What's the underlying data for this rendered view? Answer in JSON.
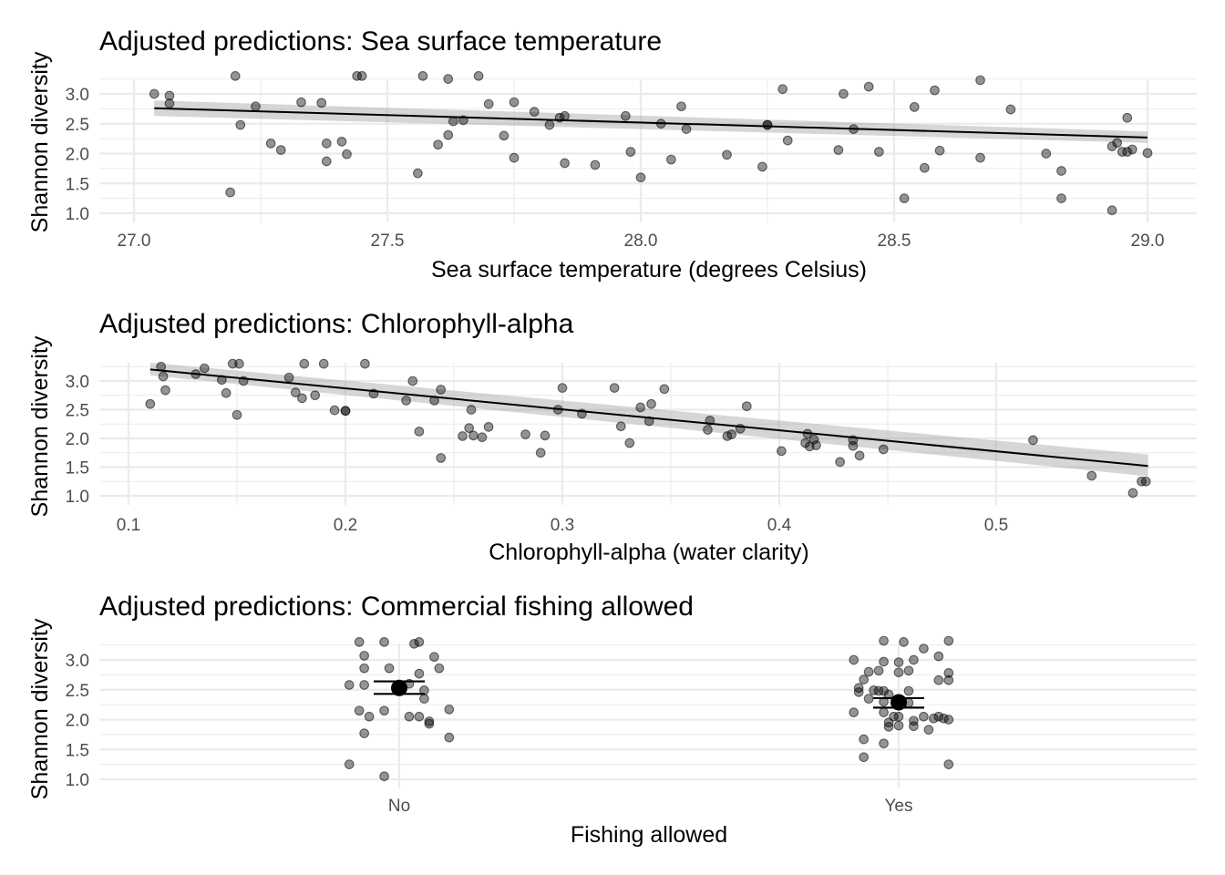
{
  "chart_data": [
    {
      "type": "scatter",
      "title": "Adjusted predictions: Sea surface temperature",
      "xlabel": "Sea surface temperature (degrees Celsius)",
      "ylabel": "Shannon diversity",
      "xlim": [
        26.93,
        29.1
      ],
      "ylim": [
        0.85,
        3.38
      ],
      "xticks": [
        27.0,
        27.5,
        28.0,
        28.5,
        29.0
      ],
      "xtick_labels": [
        "27.0",
        "27.5",
        "28.0",
        "28.5",
        "29.0"
      ],
      "yticks": [
        1.0,
        1.5,
        2.0,
        2.5,
        3.0
      ],
      "ytick_labels": [
        "1.0",
        "1.5",
        "2.0",
        "2.5",
        "3.0"
      ],
      "grid": true,
      "fit": {
        "x": [
          27.04,
          29.0
        ],
        "y": [
          2.76,
          2.27
        ],
        "ci_lower": [
          2.63,
          2.18
        ],
        "ci_upper": [
          2.89,
          2.37
        ]
      },
      "points": [
        [
          27.04,
          3.0
        ],
        [
          27.07,
          2.97
        ],
        [
          27.07,
          2.84
        ],
        [
          27.19,
          1.35
        ],
        [
          27.2,
          3.3
        ],
        [
          27.21,
          2.48
        ],
        [
          27.24,
          2.79
        ],
        [
          27.27,
          2.17
        ],
        [
          27.29,
          2.06
        ],
        [
          27.33,
          2.86
        ],
        [
          27.37,
          2.85
        ],
        [
          27.38,
          2.17
        ],
        [
          27.38,
          1.87
        ],
        [
          27.41,
          2.2
        ],
        [
          27.42,
          1.99
        ],
        [
          27.44,
          3.3
        ],
        [
          27.45,
          3.3
        ],
        [
          27.56,
          1.67
        ],
        [
          27.57,
          3.3
        ],
        [
          27.6,
          2.15
        ],
        [
          27.62,
          3.25
        ],
        [
          27.62,
          2.31
        ],
        [
          27.63,
          2.54
        ],
        [
          27.65,
          2.56
        ],
        [
          27.68,
          3.3
        ],
        [
          27.7,
          2.83
        ],
        [
          27.73,
          2.3
        ],
        [
          27.75,
          1.93
        ],
        [
          27.75,
          2.86
        ],
        [
          27.79,
          2.7
        ],
        [
          27.82,
          2.48
        ],
        [
          27.84,
          2.6
        ],
        [
          27.85,
          2.63
        ],
        [
          27.85,
          1.84
        ],
        [
          27.91,
          1.81
        ],
        [
          27.97,
          2.63
        ],
        [
          27.98,
          2.03
        ],
        [
          28.0,
          1.6
        ],
        [
          28.04,
          2.5
        ],
        [
          28.06,
          1.9
        ],
        [
          28.08,
          2.79
        ],
        [
          28.09,
          2.41
        ],
        [
          28.17,
          1.98
        ],
        [
          28.24,
          1.78
        ],
        [
          28.25,
          2.48
        ],
        [
          28.25,
          2.48
        ],
        [
          28.28,
          3.08
        ],
        [
          28.29,
          2.22
        ],
        [
          28.39,
          2.06
        ],
        [
          28.4,
          3.0
        ],
        [
          28.42,
          2.41
        ],
        [
          28.45,
          3.12
        ],
        [
          28.47,
          2.03
        ],
        [
          28.52,
          1.25
        ],
        [
          28.54,
          2.78
        ],
        [
          28.56,
          1.76
        ],
        [
          28.58,
          3.06
        ],
        [
          28.59,
          2.05
        ],
        [
          28.67,
          3.23
        ],
        [
          28.67,
          1.93
        ],
        [
          28.73,
          2.74
        ],
        [
          28.8,
          2.0
        ],
        [
          28.83,
          1.71
        ],
        [
          28.83,
          1.25
        ],
        [
          28.93,
          2.12
        ],
        [
          28.93,
          1.05
        ],
        [
          28.94,
          2.18
        ],
        [
          28.95,
          2.03
        ],
        [
          28.96,
          2.03
        ],
        [
          28.96,
          2.6
        ],
        [
          28.97,
          2.07
        ],
        [
          29.0,
          2.01
        ]
      ]
    },
    {
      "type": "scatter",
      "title": "Adjusted predictions: Chlorophyll-alpha",
      "xlabel": "Chlorophyll-alpha (water clarity)",
      "ylabel": "Shannon diversity",
      "xlim": [
        0.09,
        0.59
      ],
      "ylim": [
        0.85,
        3.4
      ],
      "xticks": [
        0.1,
        0.2,
        0.3,
        0.4,
        0.5
      ],
      "xtick_labels": [
        "0.1",
        "0.2",
        "0.3",
        "0.4",
        "0.5"
      ],
      "yticks": [
        1.0,
        1.5,
        2.0,
        2.5,
        3.0
      ],
      "ytick_labels": [
        "1.0",
        "1.5",
        "2.0",
        "2.5",
        "3.0"
      ],
      "grid": true,
      "fit": {
        "x": [
          0.11,
          0.57
        ],
        "y": [
          3.2,
          1.52
        ],
        "ci_lower": [
          3.1,
          1.34
        ],
        "ci_upper": [
          3.32,
          1.72
        ]
      },
      "points": [
        [
          0.11,
          2.6
        ],
        [
          0.115,
          3.25
        ],
        [
          0.116,
          3.08
        ],
        [
          0.117,
          2.84
        ],
        [
          0.131,
          3.12
        ],
        [
          0.135,
          3.22
        ],
        [
          0.143,
          3.02
        ],
        [
          0.145,
          2.79
        ],
        [
          0.148,
          3.3
        ],
        [
          0.15,
          2.41
        ],
        [
          0.151,
          3.3
        ],
        [
          0.153,
          3.0
        ],
        [
          0.174,
          3.06
        ],
        [
          0.177,
          2.8
        ],
        [
          0.18,
          2.7
        ],
        [
          0.181,
          3.3
        ],
        [
          0.186,
          2.75
        ],
        [
          0.19,
          3.3
        ],
        [
          0.195,
          2.49
        ],
        [
          0.2,
          2.48
        ],
        [
          0.2,
          2.48
        ],
        [
          0.209,
          3.3
        ],
        [
          0.213,
          2.78
        ],
        [
          0.228,
          2.66
        ],
        [
          0.231,
          3.0
        ],
        [
          0.234,
          2.12
        ],
        [
          0.241,
          2.66
        ],
        [
          0.244,
          2.85
        ],
        [
          0.244,
          1.66
        ],
        [
          0.254,
          2.04
        ],
        [
          0.257,
          2.18
        ],
        [
          0.258,
          2.5
        ],
        [
          0.259,
          2.05
        ],
        [
          0.263,
          2.02
        ],
        [
          0.266,
          2.2
        ],
        [
          0.283,
          2.07
        ],
        [
          0.29,
          1.75
        ],
        [
          0.292,
          2.05
        ],
        [
          0.298,
          2.5
        ],
        [
          0.3,
          2.88
        ],
        [
          0.309,
          2.43
        ],
        [
          0.324,
          2.88
        ],
        [
          0.327,
          2.21
        ],
        [
          0.331,
          1.92
        ],
        [
          0.336,
          2.54
        ],
        [
          0.34,
          2.3
        ],
        [
          0.341,
          2.6
        ],
        [
          0.347,
          2.86
        ],
        [
          0.367,
          2.15
        ],
        [
          0.368,
          2.31
        ],
        [
          0.376,
          2.04
        ],
        [
          0.378,
          2.07
        ],
        [
          0.382,
          2.17
        ],
        [
          0.385,
          2.56
        ],
        [
          0.401,
          1.78
        ],
        [
          0.412,
          1.92
        ],
        [
          0.413,
          2.08
        ],
        [
          0.414,
          1.86
        ],
        [
          0.416,
          1.98
        ],
        [
          0.417,
          1.88
        ],
        [
          0.428,
          1.59
        ],
        [
          0.434,
          1.87
        ],
        [
          0.434,
          1.97
        ],
        [
          0.437,
          1.7
        ],
        [
          0.448,
          1.81
        ],
        [
          0.517,
          1.97
        ],
        [
          0.544,
          1.35
        ],
        [
          0.563,
          1.05
        ],
        [
          0.567,
          1.25
        ],
        [
          0.569,
          1.25
        ]
      ]
    },
    {
      "type": "scatter",
      "title": "Adjusted predictions: Commercial fishing allowed",
      "xlabel": "Fishing allowed",
      "ylabel": "Shannon diversity",
      "categories": [
        "No",
        "Yes"
      ],
      "ylim": [
        0.85,
        3.38
      ],
      "yticks": [
        1.0,
        1.5,
        2.0,
        2.5,
        3.0
      ],
      "ytick_labels": [
        "1.0",
        "1.5",
        "2.0",
        "2.5",
        "3.0"
      ],
      "grid": true,
      "estimates": [
        {
          "category": "No",
          "estimate": 2.53,
          "ci_lower": 2.43,
          "ci_upper": 2.64
        },
        {
          "category": "Yes",
          "estimate": 2.29,
          "ci_lower": 2.2,
          "ci_upper": 2.36
        }
      ],
      "points": [
        [
          "No",
          -0.08,
          3.3
        ],
        [
          "No",
          -0.03,
          3.3
        ],
        [
          "No",
          0.03,
          3.27
        ],
        [
          "No",
          0.04,
          3.3
        ],
        [
          "No",
          -0.07,
          3.07
        ],
        [
          "No",
          0.07,
          3.05
        ],
        [
          "No",
          -0.07,
          2.86
        ],
        [
          "No",
          -0.02,
          2.86
        ],
        [
          "No",
          0.08,
          2.86
        ],
        [
          "No",
          0.04,
          2.77
        ],
        [
          "No",
          -0.1,
          2.58
        ],
        [
          "No",
          -0.07,
          2.58
        ],
        [
          "No",
          0.02,
          2.6
        ],
        [
          "No",
          0.05,
          2.49
        ],
        [
          "No",
          0.05,
          2.35
        ],
        [
          "No",
          -0.08,
          2.15
        ],
        [
          "No",
          -0.03,
          2.15
        ],
        [
          "No",
          0.1,
          2.17
        ],
        [
          "No",
          -0.06,
          2.05
        ],
        [
          "No",
          0.02,
          2.05
        ],
        [
          "No",
          0.04,
          2.05
        ],
        [
          "No",
          0.06,
          1.97
        ],
        [
          "No",
          0.06,
          1.93
        ],
        [
          "No",
          -0.07,
          1.77
        ],
        [
          "No",
          0.1,
          1.7
        ],
        [
          "No",
          -0.1,
          1.25
        ],
        [
          "No",
          -0.03,
          1.05
        ],
        [
          "Yes",
          -0.09,
          3.0
        ],
        [
          "Yes",
          -0.03,
          2.97
        ],
        [
          "Yes",
          0.0,
          2.96
        ],
        [
          "Yes",
          0.01,
          3.3
        ],
        [
          "Yes",
          -0.03,
          3.32
        ],
        [
          "Yes",
          0.03,
          3.0
        ],
        [
          "Yes",
          0.08,
          3.06
        ],
        [
          "Yes",
          0.1,
          3.32
        ],
        [
          "Yes",
          0.05,
          3.19
        ],
        [
          "Yes",
          -0.06,
          2.8
        ],
        [
          "Yes",
          -0.04,
          2.82
        ],
        [
          "Yes",
          0.0,
          2.79
        ],
        [
          "Yes",
          0.02,
          2.82
        ],
        [
          "Yes",
          0.1,
          2.78
        ],
        [
          "Yes",
          -0.07,
          2.67
        ],
        [
          "Yes",
          0.08,
          2.66
        ],
        [
          "Yes",
          0.1,
          2.66
        ],
        [
          "Yes",
          -0.08,
          2.53
        ],
        [
          "Yes",
          -0.05,
          2.49
        ],
        [
          "Yes",
          -0.04,
          2.48
        ],
        [
          "Yes",
          -0.03,
          2.48
        ],
        [
          "Yes",
          -0.02,
          2.42
        ],
        [
          "Yes",
          0.02,
          2.48
        ],
        [
          "Yes",
          -0.08,
          2.46
        ],
        [
          "Yes",
          -0.06,
          2.35
        ],
        [
          "Yes",
          -0.03,
          2.3
        ],
        [
          "Yes",
          0.02,
          2.28
        ],
        [
          "Yes",
          -0.09,
          2.12
        ],
        [
          "Yes",
          -0.03,
          2.12
        ],
        [
          "Yes",
          -0.01,
          2.05
        ],
        [
          "Yes",
          0.0,
          2.05
        ],
        [
          "Yes",
          0.03,
          1.98
        ],
        [
          "Yes",
          0.05,
          2.05
        ],
        [
          "Yes",
          0.07,
          2.02
        ],
        [
          "Yes",
          0.08,
          2.05
        ],
        [
          "Yes",
          0.09,
          2.02
        ],
        [
          "Yes",
          0.1,
          2.0
        ],
        [
          "Yes",
          -0.02,
          1.95
        ],
        [
          "Yes",
          -0.02,
          1.88
        ],
        [
          "Yes",
          0.0,
          1.9
        ],
        [
          "Yes",
          0.03,
          1.89
        ],
        [
          "Yes",
          0.06,
          1.83
        ],
        [
          "Yes",
          -0.07,
          1.67
        ],
        [
          "Yes",
          -0.03,
          1.6
        ],
        [
          "Yes",
          -0.07,
          1.37
        ],
        [
          "Yes",
          0.1,
          1.25
        ]
      ]
    }
  ]
}
